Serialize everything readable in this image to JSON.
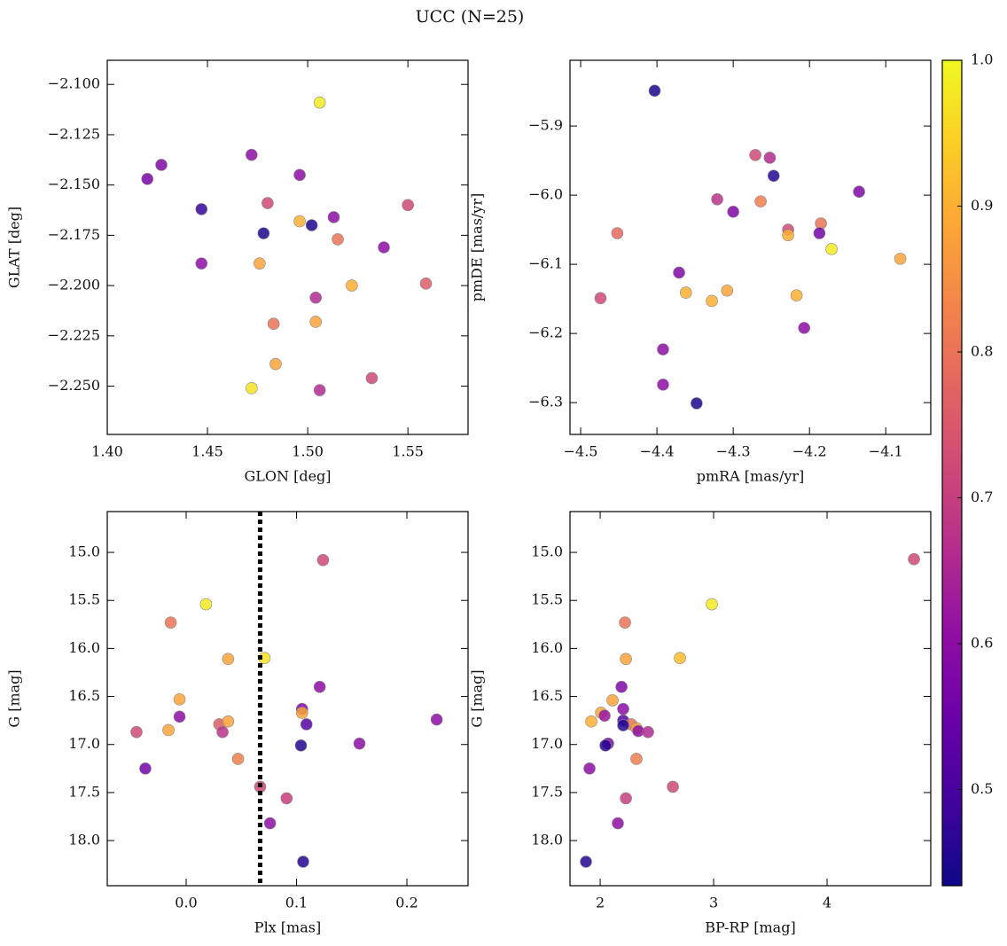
{
  "title": "UCC (N=25)",
  "chart_data": [
    {
      "type": "scatter",
      "xlabel": "GLON [deg]",
      "ylabel": "GLAT [deg]",
      "x": [
        1.506,
        1.427,
        1.42,
        1.472,
        1.496,
        1.447,
        1.48,
        1.478,
        1.502,
        1.496,
        1.513,
        1.55,
        1.515,
        1.538,
        1.447,
        1.476,
        1.522,
        1.559,
        1.504,
        1.483,
        1.504,
        1.484,
        1.472,
        1.532,
        1.506
      ],
      "y": [
        -2.109,
        -2.14,
        -2.147,
        -2.135,
        -2.145,
        -2.162,
        -2.159,
        -2.174,
        -2.17,
        -2.168,
        -2.166,
        -2.16,
        -2.177,
        -2.181,
        -2.189,
        -2.189,
        -2.2,
        -2.199,
        -2.206,
        -2.219,
        -2.218,
        -2.239,
        -2.251,
        -2.246,
        -2.252
      ],
      "c": [
        0.98,
        0.58,
        0.57,
        0.6,
        0.6,
        0.48,
        0.72,
        0.45,
        0.45,
        0.9,
        0.6,
        0.72,
        0.8,
        0.6,
        0.6,
        0.88,
        0.9,
        0.76,
        0.66,
        0.8,
        0.88,
        0.88,
        0.97,
        0.72,
        0.66
      ],
      "xlim": [
        1.4,
        1.58
      ],
      "ylim": [
        -2.274,
        -2.088
      ],
      "xticks": [
        {
          "value": 1.4,
          "label": "1.40"
        },
        1.45,
        {
          "value": 1.5,
          "label": "1.50"
        },
        1.55
      ],
      "yticks": [
        {
          "value": -2.1,
          "label": "−2.100"
        },
        {
          "value": -2.125,
          "label": "−2.125"
        },
        {
          "value": -2.15,
          "label": "−2.150"
        },
        {
          "value": -2.175,
          "label": "−2.175"
        },
        {
          "value": -2.2,
          "label": "−2.200"
        },
        {
          "value": -2.225,
          "label": "−2.225"
        },
        {
          "value": -2.25,
          "label": "−2.250"
        }
      ]
    },
    {
      "type": "scatter",
      "xlabel": "pmRA [mas/yr]",
      "ylabel": "pmDE [mas/yr]",
      "x": [
        -4.403,
        -4.271,
        -4.252,
        -4.247,
        -4.135,
        -4.321,
        -4.3,
        -4.264,
        -4.452,
        -4.228,
        -4.228,
        -4.185,
        -4.187,
        -4.171,
        -4.081,
        -4.371,
        -4.474,
        -4.362,
        -4.308,
        -4.328,
        -4.217,
        -4.207,
        -4.392,
        -4.392,
        -4.348
      ],
      "y": [
        -5.849,
        -5.942,
        -5.946,
        -5.972,
        -5.995,
        -6.006,
        -6.024,
        -6.009,
        -6.055,
        -6.05,
        -6.058,
        -6.041,
        -6.055,
        -6.078,
        -6.092,
        -6.112,
        -6.149,
        -6.141,
        -6.138,
        -6.153,
        -6.145,
        -6.192,
        -6.223,
        -6.274,
        -6.301
      ],
      "c": [
        0.45,
        0.72,
        0.66,
        0.46,
        0.58,
        0.68,
        0.58,
        0.82,
        0.78,
        0.72,
        0.9,
        0.8,
        0.56,
        0.98,
        0.88,
        0.58,
        0.72,
        0.9,
        0.88,
        0.9,
        0.9,
        0.6,
        0.6,
        0.6,
        0.45
      ],
      "xlim": [
        -4.514,
        -4.041
      ],
      "ylim": [
        -6.346,
        -5.805
      ],
      "xticks": [
        {
          "value": -4.5,
          "label": "−4.5"
        },
        {
          "value": -4.4,
          "label": "−4.4"
        },
        {
          "value": -4.3,
          "label": "−4.3"
        },
        {
          "value": -4.2,
          "label": "−4.2"
        },
        {
          "value": -4.1,
          "label": "−4.1"
        }
      ],
      "yticks": [
        {
          "value": -5.9,
          "label": "−5.9"
        },
        {
          "value": -6.0,
          "label": "−6.0"
        },
        {
          "value": -6.1,
          "label": "−6.1"
        },
        {
          "value": -6.2,
          "label": "−6.2"
        },
        {
          "value": -6.3,
          "label": "−6.3"
        }
      ]
    },
    {
      "type": "scatter",
      "xlabel": "Plx [mas]",
      "ylabel": "G [mag]",
      "x": [
        0.124,
        0.018,
        -0.014,
        0.038,
        0.071,
        0.121,
        -0.006,
        -0.006,
        0.105,
        0.105,
        0.227,
        -0.045,
        -0.016,
        0.03,
        0.038,
        0.033,
        0.109,
        -0.037,
        0.047,
        0.104,
        0.157,
        0.067,
        0.091,
        0.076,
        0.106
      ],
      "y": [
        15.08,
        15.54,
        15.73,
        16.11,
        16.1,
        16.4,
        16.53,
        16.71,
        16.63,
        16.67,
        16.74,
        16.87,
        16.85,
        16.79,
        16.76,
        16.87,
        16.79,
        17.25,
        17.15,
        17.01,
        16.99,
        17.44,
        17.56,
        17.82,
        18.22
      ],
      "c": [
        0.72,
        0.98,
        0.8,
        0.88,
        0.97,
        0.6,
        0.88,
        0.6,
        0.58,
        0.88,
        0.6,
        0.72,
        0.88,
        0.76,
        0.88,
        0.68,
        0.52,
        0.56,
        0.82,
        0.46,
        0.6,
        0.72,
        0.7,
        0.6,
        0.46
      ],
      "vline": 0.067,
      "xlim": [
        -0.0715,
        0.2554
      ],
      "ylim": [
        18.47,
        14.575
      ],
      "xticks": [
        {
          "value": 0.0,
          "label": "0.0"
        },
        0.1,
        0.2
      ],
      "yticks": [
        {
          "value": 15.0,
          "label": "15.0"
        },
        15.5,
        {
          "value": 16.0,
          "label": "16.0"
        },
        16.5,
        {
          "value": 17.0,
          "label": "17.0"
        },
        17.5,
        {
          "value": 18.0,
          "label": "18.0"
        }
      ]
    },
    {
      "type": "scatter",
      "xlabel": "BP-RP [mag]",
      "ylabel": "G [mag]",
      "x": [
        4.766,
        2.984,
        2.219,
        2.227,
        2.703,
        2.188,
        2.109,
        2.008,
        2.203,
        2.039,
        2.203,
        1.922,
        2.273,
        2.203,
        2.32,
        2.336,
        2.422,
        2.07,
        2.047,
        2.32,
        1.906,
        2.641,
        2.227,
        2.156,
        1.875
      ],
      "y": [
        15.07,
        15.54,
        15.73,
        16.11,
        16.1,
        16.4,
        16.54,
        16.67,
        16.63,
        16.7,
        16.75,
        16.76,
        16.79,
        16.8,
        16.83,
        16.86,
        16.87,
        16.99,
        17.01,
        17.15,
        17.25,
        17.44,
        17.56,
        17.82,
        18.22
      ],
      "c": [
        0.72,
        0.98,
        0.8,
        0.88,
        0.92,
        0.58,
        0.88,
        0.88,
        0.6,
        0.62,
        0.52,
        0.9,
        0.8,
        0.46,
        0.88,
        0.6,
        0.66,
        0.58,
        0.46,
        0.82,
        0.6,
        0.72,
        0.7,
        0.6,
        0.46
      ],
      "xlim": [
        1.734,
        4.914
      ],
      "ylim": [
        18.47,
        14.575
      ],
      "xticks": [
        2,
        3,
        4
      ],
      "yticks": [
        {
          "value": 15.0,
          "label": "15.0"
        },
        15.5,
        {
          "value": 16.0,
          "label": "16.0"
        },
        16.5,
        {
          "value": 17.0,
          "label": "17.0"
        },
        17.5,
        {
          "value": 18.0,
          "label": "18.0"
        }
      ]
    },
    {
      "type": "colorbar",
      "colormap": "plasma",
      "clim": [
        0.434,
        1.0
      ],
      "cticks": [
        0.5,
        0.6,
        0.7,
        0.8,
        0.9,
        {
          "value": 1.0,
          "label": "1.0"
        }
      ]
    }
  ]
}
